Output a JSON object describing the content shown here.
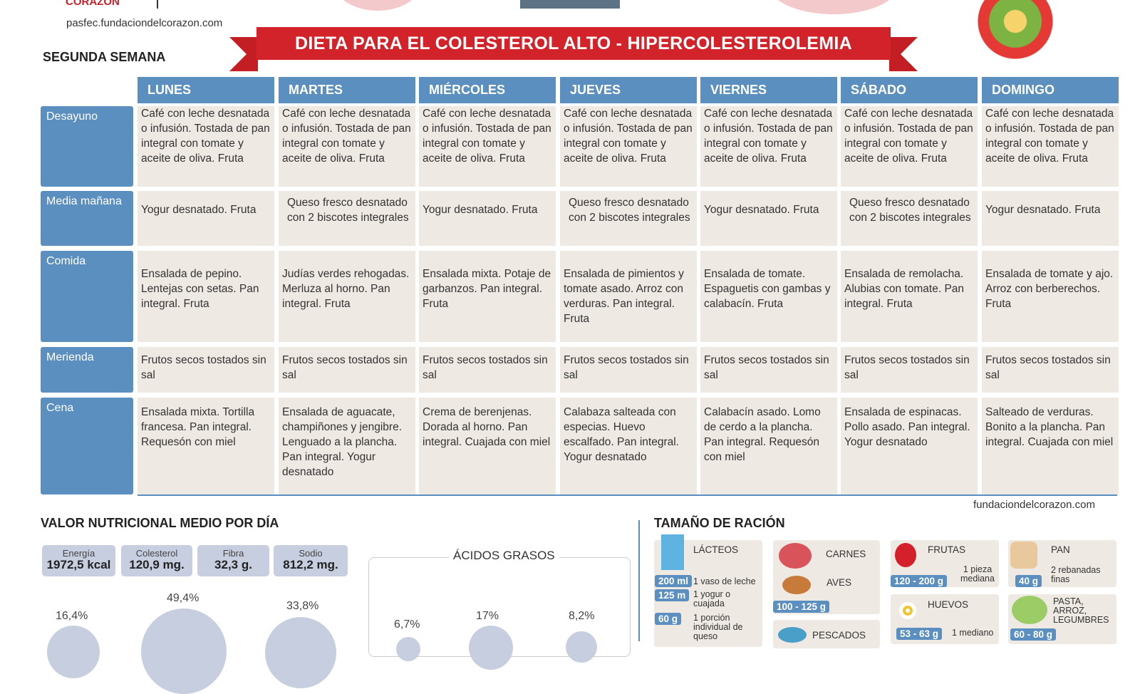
{
  "header": {
    "logo_text": "CORAZÓN",
    "url": "pasfec.fundaciondelcorazon.com",
    "title": "DIETA PARA EL COLESTEROL ALTO - HIPERCOLESTEROLEMIA",
    "week": "SEGUNDA SEMANA"
  },
  "days": [
    "LUNES",
    "MARTES",
    "MIÉRCOLES",
    "JUEVES",
    "VIERNES",
    "SÁBADO",
    "DOMINGO"
  ],
  "meals": [
    {
      "label": "Desayuno",
      "cells": [
        "Café con leche desnatada o infusión. Tostada de pan integral con tomate y aceite de oliva. Fruta",
        "Café con leche desnatada o infusión. Tostada de pan integral con tomate y aceite de oliva. Fruta",
        "Café con leche desnatada o infusión. Tostada de pan integral con tomate y aceite de oliva. Fruta",
        "Café con leche desnatada o infusión. Tostada de pan integral con tomate y aceite de oliva. Fruta",
        "Café con leche desnatada o infusión. Tostada de pan integral con tomate y aceite de oliva. Fruta",
        "Café con leche desnatada o infusión. Tostada de pan integral con tomate y aceite de oliva. Fruta",
        "Café con leche desnatada o infusión. Tostada de pan integral con tomate y aceite de oliva. Fruta"
      ]
    },
    {
      "label": "Media mañana",
      "cells": [
        "Yogur desnatado. Fruta",
        "Queso fresco desnatado con 2 biscotes integrales",
        "Yogur desnatado. Fruta",
        "Queso fresco desnatado con 2 biscotes integrales",
        "Yogur desnatado. Fruta",
        "Queso fresco desnatado con 2 biscotes integrales",
        "Yogur desnatado. Fruta"
      ]
    },
    {
      "label": "Comida",
      "cells": [
        "Ensalada de pepino. Lentejas con setas. Pan integral. Fruta",
        "Judías verdes rehogadas. Merluza al horno. Pan integral. Fruta",
        "Ensalada mixta. Potaje de garbanzos. Pan integral. Fruta",
        "Ensalada de pimientos y tomate asado. Arroz con verduras. Pan integral. Fruta",
        "Ensalada de tomate. Espaguetis con gambas y calabacín. Fruta",
        "Ensalada de remolacha. Alubias con tomate. Pan integral. Fruta",
        "Ensalada de tomate y ajo. Arroz con berberechos. Fruta"
      ]
    },
    {
      "label": "Merienda",
      "cells": [
        "Frutos secos tostados sin sal",
        "Frutos secos tostados sin sal",
        "Frutos secos tostados sin sal",
        "Frutos secos tostados sin sal",
        "Frutos secos tostados sin sal",
        "Frutos secos tostados sin sal",
        "Frutos secos tostados sin sal"
      ]
    },
    {
      "label": "Cena",
      "cells": [
        "Ensalada mixta. Tortilla francesa. Pan integral. Requesón con miel",
        "Ensalada de aguacate, champiñones y jengibre. Lenguado a la plancha. Pan integral. Yogur desnatado",
        "Crema de berenjenas. Dorada al horno. Pan integral. Cuajada con miel",
        "Calabaza salteada con especias. Huevo escalfado. Pan integral. Yogur desnatado",
        "Calabacín asado. Lomo de cerdo a la plancha. Pan integral. Requesón con miel",
        "Ensalada de espinacas. Pollo asado. Pan integral. Yogur desnatado",
        "Salteado de verduras. Bonito a la plancha. Pan integral. Cuajada con miel"
      ]
    }
  ],
  "footer_url": "fundaciondelcorazon.com",
  "nutrition": {
    "title": "VALOR NUTRICIONAL MEDIO POR DÍA",
    "boxes": [
      {
        "label": "Energía",
        "value": "1972,5 kcal"
      },
      {
        "label": "Colesterol",
        "value": "120,9 mg."
      },
      {
        "label": "Fibra",
        "value": "32,3 g."
      },
      {
        "label": "Sodio",
        "value": "812,2 mg."
      }
    ],
    "macros": [
      "16,4%",
      "49,4%",
      "33,8%"
    ],
    "acidos_title": "ÁCIDOS GRASOS",
    "acidos": [
      "6,7%",
      "17%",
      "8,2%"
    ]
  },
  "racion": {
    "title": "TAMAÑO DE RACIÓN",
    "lacteos": {
      "label": "LÁCTEOS",
      "items": [
        {
          "tag": "200 ml",
          "text": "1 vaso de leche"
        },
        {
          "tag": "125 m",
          "text": "1 yogur o cuajada"
        },
        {
          "tag": "60 g",
          "text": "1 porción individual de queso"
        }
      ]
    },
    "carnes": "CARNES",
    "aves": "AVES",
    "carnes_tag": "100 - 125 g",
    "pescados": "PESCADOS",
    "frutas": {
      "label": "FRUTAS",
      "tag": "120 - 200 g",
      "text": "1 pieza mediana"
    },
    "huevos": {
      "label": "HUEVOS",
      "tag": "53 - 63 g",
      "text": "1 mediano"
    },
    "pan": {
      "label": "PAN",
      "tag": "40 g",
      "text": "2 rebanadas finas"
    },
    "pasta": {
      "label": "PASTA, ARROZ, LEGUMBRES",
      "tag": "60 - 80 g"
    }
  },
  "colors": {
    "header_blue": "#5b8fbf",
    "banner_red": "#d2232a",
    "cell_bg": "#efe9e3",
    "circle": "#c6cedf"
  }
}
